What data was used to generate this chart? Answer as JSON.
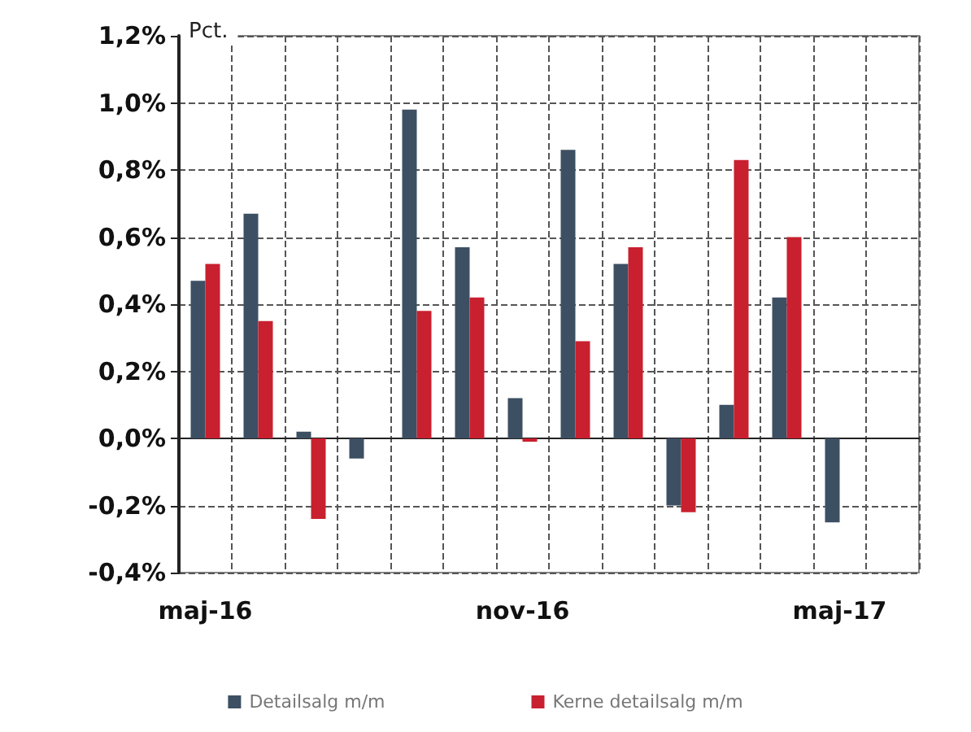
{
  "chart_data": {
    "type": "bar",
    "ylabel": "Pct.",
    "categories": [
      "maj-16",
      null,
      null,
      null,
      null,
      null,
      "nov-16",
      null,
      null,
      null,
      null,
      null,
      "maj-17",
      null
    ],
    "series": [
      {
        "name": "Detailsalg m/m",
        "color": "#3d4f63",
        "values": [
          0.47,
          0.67,
          0.02,
          -0.06,
          0.98,
          0.57,
          0.12,
          0.86,
          0.52,
          -0.2,
          0.1,
          0.42,
          -0.25,
          null
        ]
      },
      {
        "name": "Kerne detailsalg m/m",
        "color": "#c8202f",
        "values": [
          0.52,
          0.35,
          -0.24,
          null,
          0.38,
          0.42,
          -0.01,
          0.29,
          0.57,
          -0.22,
          0.83,
          0.6,
          null,
          null
        ]
      }
    ],
    "ylim": [
      -0.4,
      1.2
    ],
    "yticks": [
      {
        "value": -0.4,
        "label": "-0,4%"
      },
      {
        "value": -0.2,
        "label": "-0,2%"
      },
      {
        "value": 0,
        "label": "0,0%"
      },
      {
        "value": 0.2,
        "label": "0,2%"
      },
      {
        "value": 0.4,
        "label": "0,4%"
      },
      {
        "value": 0.6,
        "label": "0,6%"
      },
      {
        "value": 0.8,
        "label": "0,8%"
      },
      {
        "value": 1.0,
        "label": "1,0%"
      },
      {
        "value": 1.2,
        "label": "1,2%"
      }
    ],
    "grid": true,
    "legend": "bottom"
  }
}
